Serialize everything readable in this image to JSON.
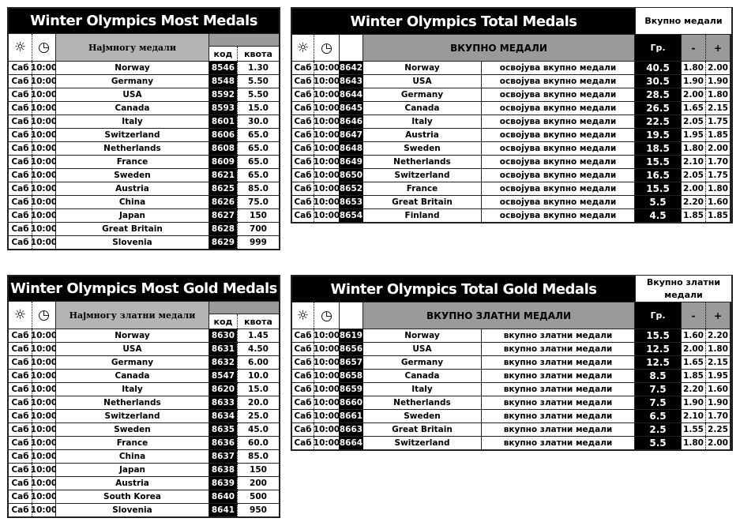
{
  "icons": {
    "day": "sun-icon",
    "time": "clock-icon",
    "code": "pen-writing-icon"
  },
  "table1": {
    "title": "Winter Olympics Most Medals",
    "header": "Најмногу медали",
    "col_code": "код",
    "col_odds": "квота",
    "rows": [
      [
        "Саб",
        "10:00",
        "Norway",
        "8546",
        "1.30"
      ],
      [
        "Саб",
        "10:00",
        "Germany",
        "8548",
        "5.50"
      ],
      [
        "Саб",
        "10:00",
        "USA",
        "8592",
        "5.50"
      ],
      [
        "Саб",
        "10:00",
        "Canada",
        "8593",
        "15.0"
      ],
      [
        "Саб",
        "10:00",
        "Italy",
        "8601",
        "30.0"
      ],
      [
        "Саб",
        "10:00",
        "Switzerland",
        "8606",
        "65.0"
      ],
      [
        "Саб",
        "10:00",
        "Netherlands",
        "8608",
        "65.0"
      ],
      [
        "Саб",
        "10:00",
        "France",
        "8609",
        "65.0"
      ],
      [
        "Саб",
        "10:00",
        "Sweden",
        "8621",
        "65.0"
      ],
      [
        "Саб",
        "10:00",
        "Austria",
        "8625",
        "85.0"
      ],
      [
        "Саб",
        "10:00",
        "China",
        "8626",
        "75.0"
      ],
      [
        "Саб",
        "10:00",
        "Japan",
        "8627",
        "150"
      ],
      [
        "Саб",
        "10:00",
        "Great Britain",
        "8628",
        "700"
      ],
      [
        "Саб",
        "10:00",
        "Slovenia",
        "8629",
        "999"
      ]
    ]
  },
  "table2": {
    "title": "Winter Olympics Total Medals",
    "box": "Вкупно медали",
    "header": "ВКУПНО МЕДАЛИ",
    "col_line": "Гр.",
    "col_minus": "-",
    "col_plus": "+",
    "rows": [
      [
        "Саб",
        "10:00",
        "8642",
        "Norway",
        "освојува вкупно медали",
        "40.5",
        "1.80",
        "2.00"
      ],
      [
        "Саб",
        "10:00",
        "8643",
        "USA",
        "освојува вкупно медали",
        "30.5",
        "1.90",
        "1.90"
      ],
      [
        "Саб",
        "10:00",
        "8644",
        "Germany",
        "освојува вкупно медали",
        "28.5",
        "2.00",
        "1.80"
      ],
      [
        "Саб",
        "10:00",
        "8645",
        "Canada",
        "освојува вкупно медали",
        "26.5",
        "1.65",
        "2.15"
      ],
      [
        "Саб",
        "10:00",
        "8646",
        "Italy",
        "освојува вкупно медали",
        "22.5",
        "2.05",
        "1.75"
      ],
      [
        "Саб",
        "10:00",
        "8647",
        "Austria",
        "освојува вкупно медали",
        "19.5",
        "1.95",
        "1.85"
      ],
      [
        "Саб",
        "10:00",
        "8648",
        "Sweden",
        "освојува вкупно медали",
        "18.5",
        "1.80",
        "2.00"
      ],
      [
        "Саб",
        "10:00",
        "8649",
        "Netherlands",
        "освојува вкупно медали",
        "15.5",
        "2.10",
        "1.70"
      ],
      [
        "Саб",
        "10:00",
        "8650",
        "Switzerland",
        "освојува вкупно медали",
        "16.5",
        "2.05",
        "1.75"
      ],
      [
        "Саб",
        "10:00",
        "8652",
        "France",
        "освојува вкупно медали",
        "15.5",
        "2.00",
        "1.80"
      ],
      [
        "Саб",
        "10:00",
        "8653",
        "Great Britain",
        "освојува вкупно медали",
        "5.5",
        "2.20",
        "1.60"
      ],
      [
        "Саб",
        "10:00",
        "8654",
        "Finland",
        "освојува вкупно медали",
        "4.5",
        "1.85",
        "1.85"
      ]
    ]
  },
  "table3": {
    "title": "Winter Olympics Most Gold Medals",
    "header": "Најмногу златни медали",
    "col_code": "код",
    "col_odds": "квота",
    "rows": [
      [
        "Саб",
        "10:00",
        "Norway",
        "8630",
        "1.45"
      ],
      [
        "Саб",
        "10:00",
        "USA",
        "8631",
        "4.50"
      ],
      [
        "Саб",
        "10:00",
        "Germany",
        "8632",
        "6.00"
      ],
      [
        "Саб",
        "10:00",
        "Canada",
        "8547",
        "10.0"
      ],
      [
        "Саб",
        "10:00",
        "Italy",
        "8620",
        "15.0"
      ],
      [
        "Саб",
        "10:00",
        "Netherlands",
        "8633",
        "20.0"
      ],
      [
        "Саб",
        "10:00",
        "Switzerland",
        "8634",
        "25.0"
      ],
      [
        "Саб",
        "10:00",
        "Sweden",
        "8635",
        "45.0"
      ],
      [
        "Саб",
        "10:00",
        "France",
        "8636",
        "60.0"
      ],
      [
        "Саб",
        "10:00",
        "China",
        "8637",
        "85.0"
      ],
      [
        "Саб",
        "10:00",
        "Japan",
        "8638",
        "150"
      ],
      [
        "Саб",
        "10:00",
        "Austria",
        "8639",
        "200"
      ],
      [
        "Саб",
        "10:00",
        "South Korea",
        "8640",
        "500"
      ],
      [
        "Саб",
        "10:00",
        "Slovenia",
        "8641",
        "950"
      ]
    ]
  },
  "table4": {
    "title": "Winter Olympics Total Gold Medals",
    "box": "Вкупно златни медали",
    "header": "ВКУПНО ЗЛАТНИ МЕДАЛИ",
    "col_line": "Гр.",
    "col_minus": "-",
    "col_plus": "+",
    "rows": [
      [
        "Саб",
        "10:00",
        "8619",
        "Norway",
        "вкупно златни медали",
        "15.5",
        "1.60",
        "2.20"
      ],
      [
        "Саб",
        "10:00",
        "8656",
        "USA",
        "вкупно златни медали",
        "12.5",
        "2.00",
        "1.80"
      ],
      [
        "Саб",
        "10:00",
        "8657",
        "Germany",
        "вкупно златни медали",
        "12.5",
        "1.65",
        "2.15"
      ],
      [
        "Саб",
        "10:00",
        "8658",
        "Canada",
        "вкупно златни медали",
        "8.5",
        "1.85",
        "1.95"
      ],
      [
        "Саб",
        "10:00",
        "8659",
        "Italy",
        "вкупно златни медали",
        "7.5",
        "2.20",
        "1.60"
      ],
      [
        "Саб",
        "10:00",
        "8660",
        "Netherlands",
        "вкупно златни медали",
        "7.5",
        "1.90",
        "1.90"
      ],
      [
        "Саб",
        "10:00",
        "8661",
        "Sweden",
        "вкупно златни медали",
        "6.5",
        "2.10",
        "1.70"
      ],
      [
        "Саб",
        "10:00",
        "8663",
        "Great Britain",
        "вкупно златни медали",
        "2.5",
        "1.55",
        "2.25"
      ],
      [
        "Саб",
        "10:00",
        "8664",
        "Switzerland",
        "вкупно златни медали",
        "5.5",
        "1.80",
        "2.00"
      ]
    ]
  }
}
